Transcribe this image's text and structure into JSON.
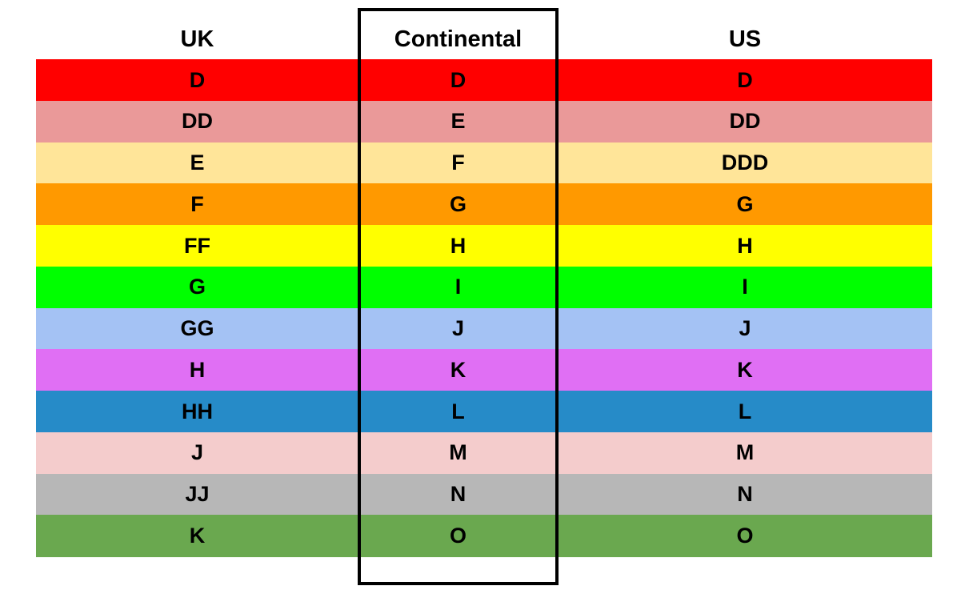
{
  "table": {
    "header": [
      "UK",
      "Continental",
      "US"
    ],
    "rows": [
      [
        "D",
        "D",
        "D"
      ],
      [
        "DD",
        "E",
        "DD"
      ],
      [
        "E",
        "F",
        "DDD"
      ],
      [
        "F",
        "G",
        "G"
      ],
      [
        "FF",
        "H",
        "H"
      ],
      [
        "G",
        "I",
        "I"
      ],
      [
        "GG",
        "J",
        "J"
      ],
      [
        "H",
        "K",
        "K"
      ],
      [
        "HH",
        "L",
        "L"
      ],
      [
        "J",
        "M",
        "M"
      ],
      [
        "JJ",
        "N",
        "N"
      ],
      [
        "K",
        "O",
        "O"
      ]
    ],
    "row_colors": [
      "#ff0000",
      "#ea9999",
      "#ffe599",
      "#ff9900",
      "#ffff00",
      "#00ff00",
      "#a4c2f4",
      "#e06ff4",
      "#268bc8",
      "#f4cccc",
      "#b7b7b7",
      "#6aa84f"
    ]
  }
}
